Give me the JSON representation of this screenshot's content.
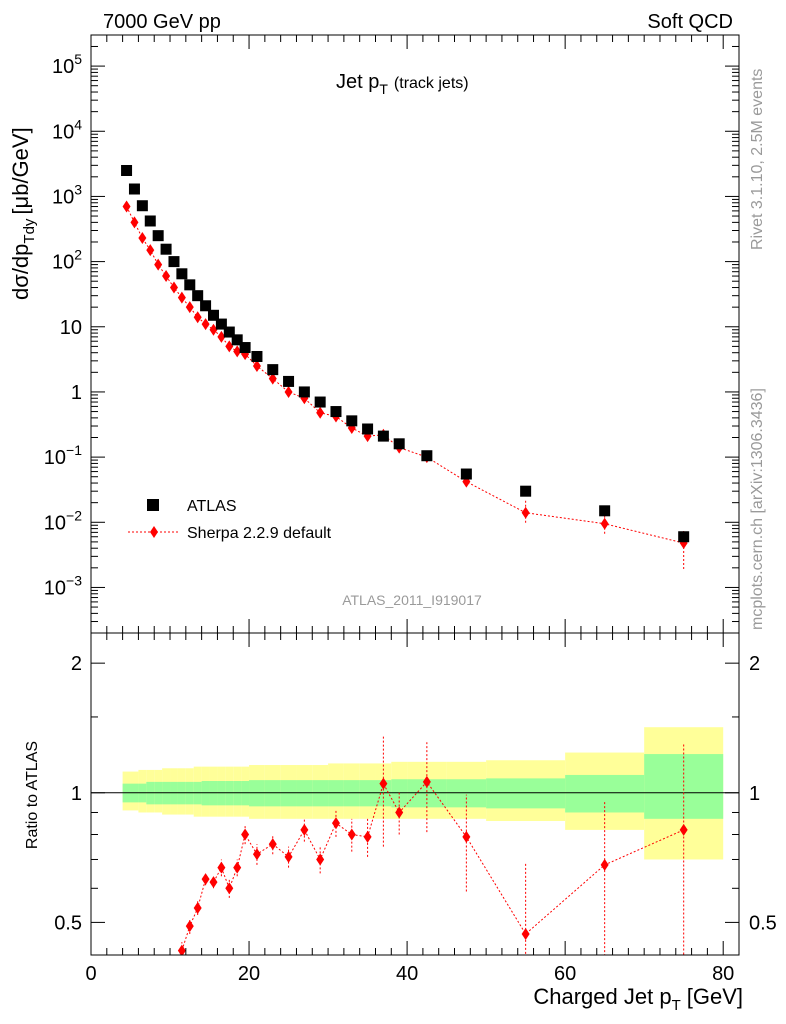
{
  "header": {
    "left": "7000 GeV pp",
    "right": "Soft QCD",
    "side_rivet": "Rivet 3.1.10,  2.5M events",
    "side_mcplots": "mcplots.cern.ch [arXiv:1306.3436]",
    "analysis_id": "ATLAS_2011_I919017"
  },
  "chart_data": [
    {
      "type": "scatter",
      "title_main": "Jet p",
      "title_sub": "T",
      "title_note": "(track jets)",
      "ylabel_main": "dσ/dp",
      "ylabel_sub": "Tdy",
      "ylabel_unit": "[μb/GeV]",
      "y_scale": "log",
      "ylim": [
        0.0002,
        300000
      ],
      "xlim": [
        0,
        82
      ],
      "y_ticks": [
        {
          "v": 100000,
          "b": "10",
          "e": "5"
        },
        {
          "v": 10000,
          "b": "10",
          "e": "4"
        },
        {
          "v": 1000,
          "b": "10",
          "e": "3"
        },
        {
          "v": 100,
          "b": "10",
          "e": "2"
        },
        {
          "v": 10,
          "b": "10",
          "e": ""
        },
        {
          "v": 1,
          "b": "1",
          "e": ""
        },
        {
          "v": 0.1,
          "b": "10",
          "e": "−1"
        },
        {
          "v": 0.01,
          "b": "10",
          "e": "−2"
        },
        {
          "v": 0.001,
          "b": "10",
          "e": "−3"
        }
      ],
      "legend_position": "bottom-left",
      "series": [
        {
          "name": "ATLAS",
          "color": "#000000",
          "marker": "square",
          "x": [
            4.5,
            5.5,
            6.5,
            7.5,
            8.5,
            9.5,
            10.5,
            11.5,
            12.5,
            13.5,
            14.5,
            15.5,
            16.5,
            17.5,
            18.5,
            19.5,
            21,
            23,
            25,
            27,
            29,
            31,
            33,
            35,
            37,
            39,
            42.5,
            47.5,
            55,
            65,
            75
          ],
          "y": [
            2500,
            1300,
            720,
            420,
            250,
            155,
            100,
            65,
            44,
            30,
            21,
            15,
            11,
            8.3,
            6.3,
            4.8,
            3.5,
            2.2,
            1.45,
            1.0,
            0.7,
            0.5,
            0.36,
            0.27,
            0.21,
            0.16,
            0.105,
            0.055,
            0.03,
            0.015,
            0.006
          ]
        },
        {
          "name": "Sherpa 2.2.9 default",
          "color": "#ff0000",
          "marker": "diamond",
          "line": "dotted",
          "x": [
            4.5,
            5.5,
            6.5,
            7.5,
            8.5,
            9.5,
            10.5,
            11.5,
            12.5,
            13.5,
            14.5,
            15.5,
            16.5,
            17.5,
            18.5,
            19.5,
            21,
            23,
            25,
            27,
            29,
            31,
            33,
            35,
            37,
            39,
            42.5,
            47.5,
            55,
            65,
            75
          ],
          "y": [
            700,
            400,
            230,
            150,
            90,
            60,
            40,
            28,
            20,
            14,
            11,
            9,
            7,
            5,
            4.2,
            3.8,
            2.5,
            1.6,
            1.0,
            0.8,
            0.48,
            0.42,
            0.28,
            0.21,
            0.22,
            0.14,
            0.1,
            0.042,
            0.014,
            0.0095,
            0.0048
          ]
        }
      ]
    },
    {
      "type": "scatter",
      "ylabel": "Ratio to ATLAS",
      "xlabel_main": "Charged Jet p",
      "xlabel_sub": "T",
      "xlabel_unit": "[GeV]",
      "y_scale": "log",
      "ylim": [
        0.42,
        2.35
      ],
      "xlim": [
        0,
        82
      ],
      "y_ticks": [
        "0.5",
        "1",
        "2"
      ],
      "x_ticks": [
        "0",
        "20",
        "40",
        "60",
        "80"
      ],
      "bands": [
        {
          "edges": [
            4,
            5,
            6,
            7,
            8,
            9,
            10,
            11,
            12,
            13,
            14,
            15,
            16,
            17,
            18,
            19,
            20,
            22,
            24,
            26,
            28,
            30,
            32,
            34,
            36,
            38,
            40,
            45,
            50,
            60,
            70,
            80
          ],
          "stat_lo": [
            0.95,
            0.95,
            0.95,
            0.94,
            0.94,
            0.94,
            0.94,
            0.94,
            0.94,
            0.94,
            0.935,
            0.935,
            0.935,
            0.935,
            0.935,
            0.935,
            0.93,
            0.93,
            0.93,
            0.93,
            0.93,
            0.93,
            0.93,
            0.93,
            0.93,
            0.925,
            0.925,
            0.925,
            0.92,
            0.9,
            0.87
          ],
          "stat_hi": [
            1.05,
            1.05,
            1.05,
            1.06,
            1.06,
            1.06,
            1.06,
            1.06,
            1.06,
            1.06,
            1.065,
            1.065,
            1.065,
            1.065,
            1.065,
            1.065,
            1.07,
            1.07,
            1.07,
            1.07,
            1.07,
            1.07,
            1.07,
            1.07,
            1.07,
            1.075,
            1.075,
            1.075,
            1.08,
            1.1,
            1.23
          ],
          "tot_lo": [
            0.91,
            0.91,
            0.9,
            0.9,
            0.9,
            0.89,
            0.89,
            0.89,
            0.89,
            0.88,
            0.88,
            0.88,
            0.88,
            0.88,
            0.88,
            0.88,
            0.87,
            0.87,
            0.87,
            0.87,
            0.87,
            0.87,
            0.87,
            0.87,
            0.87,
            0.87,
            0.87,
            0.87,
            0.86,
            0.82,
            0.7
          ],
          "tot_hi": [
            1.12,
            1.12,
            1.13,
            1.13,
            1.13,
            1.14,
            1.14,
            1.14,
            1.14,
            1.15,
            1.15,
            1.15,
            1.15,
            1.15,
            1.15,
            1.15,
            1.16,
            1.16,
            1.16,
            1.16,
            1.16,
            1.17,
            1.17,
            1.17,
            1.17,
            1.18,
            1.18,
            1.18,
            1.19,
            1.24,
            1.42
          ]
        }
      ],
      "series": [
        {
          "name": "Sherpa 2.2.9 default",
          "color": "#ff0000",
          "x": [
            10.5,
            11.5,
            12.5,
            13.5,
            14.5,
            15.5,
            16.5,
            17.5,
            18.5,
            19.5,
            21,
            23,
            25,
            27,
            29,
            31,
            33,
            35,
            37,
            39,
            42.5,
            47.5,
            55,
            65,
            75
          ],
          "y": [
            0.4,
            0.43,
            0.49,
            0.54,
            0.63,
            0.62,
            0.67,
            0.6,
            0.67,
            0.8,
            0.72,
            0.76,
            0.71,
            0.82,
            0.7,
            0.85,
            0.8,
            0.79,
            1.05,
            0.9,
            1.06,
            0.79,
            0.47,
            0.68,
            0.82
          ],
          "err": [
            0.02,
            0.02,
            0.02,
            0.02,
            0.02,
            0.02,
            0.03,
            0.03,
            0.03,
            0.04,
            0.04,
            0.04,
            0.04,
            0.05,
            0.05,
            0.06,
            0.07,
            0.08,
            0.3,
            0.1,
            0.25,
            0.2,
            0.22,
            0.28,
            0.48
          ]
        }
      ]
    }
  ]
}
